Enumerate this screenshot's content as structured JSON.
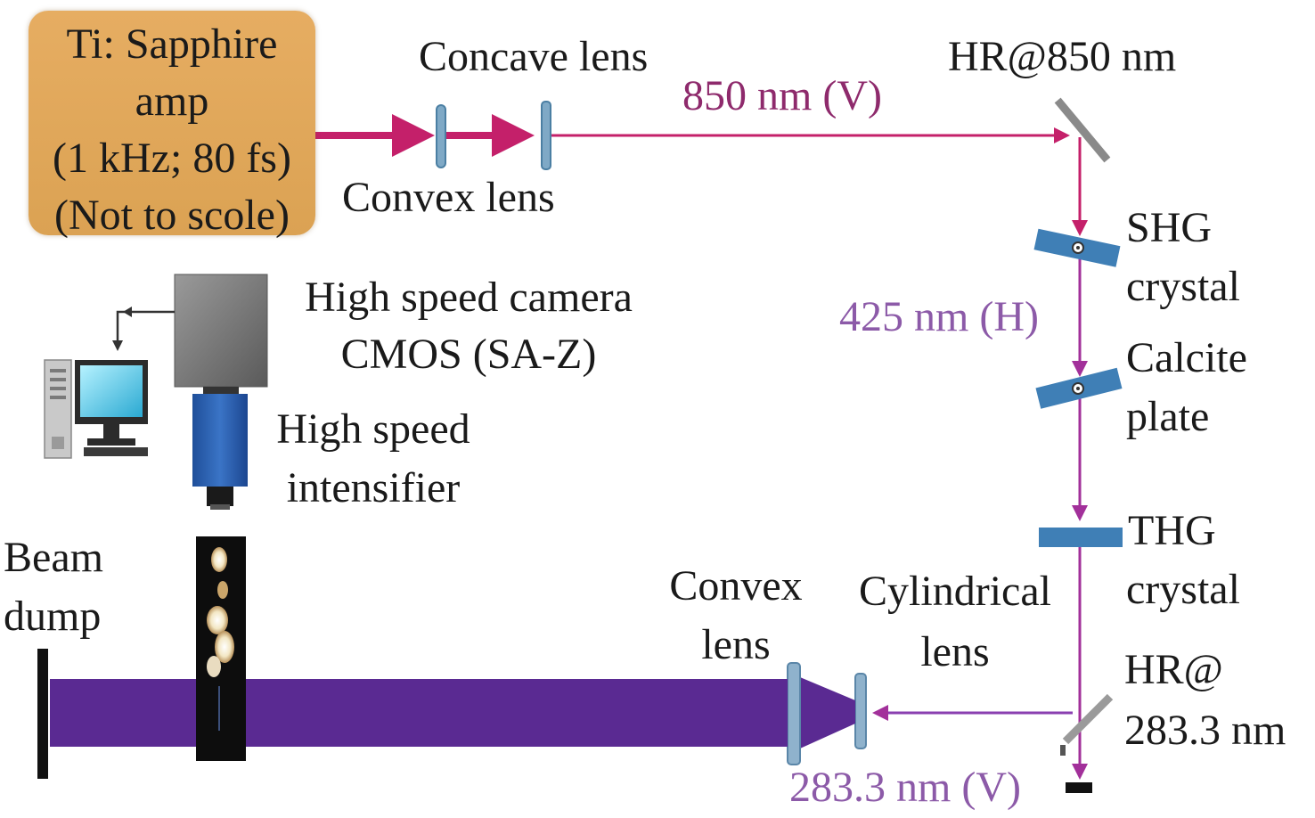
{
  "laser": {
    "line1": "Ti: Sapphire",
    "line2": "amp",
    "line3": "(1 kHz; 80 fs)",
    "line4": "(Not to scole)"
  },
  "labels": {
    "concave_lens": "Concave lens",
    "convex_lens_top": "Convex lens",
    "beam_850": "850 nm (V)",
    "hr_850": "HR@850 nm",
    "shg_line1": "SHG",
    "shg_line2": "crystal",
    "beam_425": "425 nm (H)",
    "calcite_line1": "Calcite",
    "calcite_line2": "plate",
    "thg_line1": "THG",
    "thg_line2": "crystal",
    "hr_283_line1": "HR@",
    "hr_283_line2": "283.3 nm",
    "beam_283": "283.3 nm (V)",
    "cyl_line1": "Cylindrical",
    "cyl_line2": "lens",
    "convex2_line1": "Convex",
    "convex2_line2": "lens",
    "beam_dump_line1": "Beam",
    "beam_dump_line2": "dump",
    "camera_line1": "High speed camera",
    "camera_line2": "CMOS (SA-Z)",
    "intensifier_line1": "High speed",
    "intensifier_line2": "intensifier"
  },
  "colors": {
    "beam_850": "#c4206a",
    "beam_850_text": "#8e2a6c",
    "beam_425": "#a2309a",
    "beam_425_text": "#8c5aa8",
    "beam_283": "#8a3fb0",
    "sheet": "#5a2a92",
    "laser_box": "#e0a85a",
    "optic": "#3f7fb6"
  }
}
